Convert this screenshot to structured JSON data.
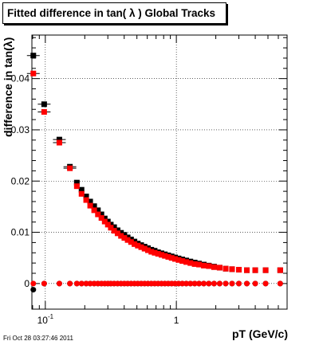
{
  "chart_data": {
    "type": "scatter",
    "title": "Fitted difference in tan( λ )  Global Tracks",
    "xlabel": "pT (GeV/c)",
    "ylabel": "difference in tan(λ)",
    "x_scale": "log",
    "xlim": [
      0.079,
      7.0
    ],
    "ylim": [
      -0.005,
      0.0485
    ],
    "grid": true,
    "x_tick_labels": [
      {
        "value": 0.1,
        "base": "10",
        "exp": "-1"
      },
      {
        "value": 1.0,
        "base": "1",
        "exp": ""
      }
    ],
    "y_ticks": [
      {
        "value": 0,
        "label": "0"
      },
      {
        "value": 0.01,
        "label": "0.01"
      },
      {
        "value": 0.02,
        "label": "0.02"
      },
      {
        "value": 0.03,
        "label": "0.03"
      },
      {
        "value": 0.04,
        "label": "0.04"
      }
    ],
    "series": [
      {
        "color": "#000000",
        "marker": "square",
        "x": [
          0.081,
          0.098,
          0.128,
          0.154,
          0.174,
          0.189,
          0.205,
          0.22,
          0.236,
          0.252,
          0.268,
          0.284,
          0.3,
          0.316,
          0.335,
          0.356,
          0.378,
          0.401,
          0.425,
          0.451,
          0.479,
          0.508,
          0.539,
          0.572,
          0.607,
          0.644,
          0.683,
          0.725,
          0.77,
          0.817,
          0.867,
          0.92,
          0.977,
          1.04,
          1.11,
          1.19,
          1.28,
          1.38,
          1.49,
          1.62,
          1.77,
          1.94,
          2.14,
          2.38,
          2.66,
          3.0,
          3.45,
          4.0,
          4.8,
          6.2
        ],
        "y": [
          0.0445,
          0.035,
          0.0281,
          0.0228,
          0.0197,
          0.0183,
          0.017,
          0.016,
          0.0151,
          0.0143,
          0.0135,
          0.0127,
          0.0121,
          0.0115,
          0.011,
          0.0104,
          0.0099,
          0.0095,
          0.009,
          0.0086,
          0.0082,
          0.0078,
          0.0075,
          0.0072,
          0.0069,
          0.0066,
          0.0064,
          0.0061,
          0.0059,
          0.0057,
          0.0055,
          0.0053,
          0.0051,
          0.0049,
          0.0047,
          0.0045,
          0.0043,
          0.0041,
          0.0039,
          0.0037,
          0.0035,
          0.0033,
          0.0031,
          0.0029,
          0.0028,
          0.0027,
          0.0026,
          0.0026,
          0.0026,
          0.0026
        ]
      },
      {
        "color": "#ff0000",
        "marker": "square",
        "x": [
          0.081,
          0.098,
          0.128,
          0.154,
          0.174,
          0.189,
          0.205,
          0.22,
          0.236,
          0.252,
          0.268,
          0.284,
          0.3,
          0.316,
          0.335,
          0.356,
          0.378,
          0.401,
          0.425,
          0.451,
          0.479,
          0.508,
          0.539,
          0.572,
          0.607,
          0.644,
          0.683,
          0.725,
          0.77,
          0.817,
          0.867,
          0.92,
          0.977,
          1.04,
          1.11,
          1.19,
          1.28,
          1.38,
          1.49,
          1.62,
          1.77,
          1.94,
          2.14,
          2.38,
          2.66,
          3.0,
          3.45,
          4.0,
          4.8,
          6.2
        ],
        "y": [
          0.041,
          0.0335,
          0.0275,
          0.0225,
          0.019,
          0.0175,
          0.0163,
          0.0152,
          0.0143,
          0.0135,
          0.0128,
          0.0121,
          0.0115,
          0.0109,
          0.0103,
          0.0098,
          0.0093,
          0.0089,
          0.0085,
          0.0081,
          0.0077,
          0.0074,
          0.0071,
          0.0068,
          0.0065,
          0.0062,
          0.006,
          0.0058,
          0.0056,
          0.0054,
          0.0052,
          0.005,
          0.0048,
          0.0046,
          0.0044,
          0.0042,
          0.004,
          0.0038,
          0.0037,
          0.0035,
          0.0034,
          0.0032,
          0.0031,
          0.0029,
          0.0028,
          0.0027,
          0.0026,
          0.0026,
          0.0026,
          0.0026
        ]
      },
      {
        "color": "#000000",
        "marker": "circle",
        "x": [
          0.081,
          0.098,
          0.128,
          0.154,
          0.174,
          0.189,
          0.205,
          0.22,
          0.236,
          0.252,
          0.268,
          0.284,
          0.3,
          0.316,
          0.335,
          0.356,
          0.378,
          0.401,
          0.425,
          0.451,
          0.479,
          0.508,
          0.539,
          0.572,
          0.607,
          0.644,
          0.683,
          0.725,
          0.77,
          0.817,
          0.867,
          0.92,
          0.977,
          1.04,
          1.11,
          1.19,
          1.28,
          1.38,
          1.49,
          1.62,
          1.77,
          1.94,
          2.14,
          2.38,
          2.66,
          3.0,
          3.45,
          4.0,
          4.8,
          6.2
        ],
        "y": [
          -0.0012,
          0.0,
          0.0,
          0.0,
          0.0,
          0.0,
          0.0,
          0.0,
          0.0,
          0.0,
          0.0,
          0.0,
          0.0,
          0.0,
          0.0,
          0.0,
          0.0,
          0.0,
          0.0,
          0.0,
          0.0,
          0.0,
          0.0,
          0.0,
          0.0,
          0.0,
          0.0,
          0.0,
          0.0,
          0.0,
          0.0,
          0.0,
          0.0,
          0.0,
          0.0,
          0.0,
          0.0,
          0.0,
          0.0,
          0.0,
          0.0,
          0.0,
          0.0,
          0.0,
          0.0,
          0.0,
          0.0,
          0.0,
          0.0,
          0.0
        ]
      },
      {
        "color": "#ff0000",
        "marker": "circle",
        "x": [
          0.081,
          0.098,
          0.128,
          0.154,
          0.174,
          0.189,
          0.205,
          0.22,
          0.236,
          0.252,
          0.268,
          0.284,
          0.3,
          0.316,
          0.335,
          0.356,
          0.378,
          0.401,
          0.425,
          0.451,
          0.479,
          0.508,
          0.539,
          0.572,
          0.607,
          0.644,
          0.683,
          0.725,
          0.77,
          0.817,
          0.867,
          0.92,
          0.977,
          1.04,
          1.11,
          1.19,
          1.28,
          1.38,
          1.49,
          1.62,
          1.77,
          1.94,
          2.14,
          2.38,
          2.66,
          3.0,
          3.45,
          4.0,
          4.8,
          6.2
        ],
        "y": [
          0.0,
          0.0,
          0.0,
          0.0,
          0.0,
          0.0,
          0.0,
          0.0,
          0.0,
          0.0,
          0.0,
          0.0,
          0.0,
          0.0,
          0.0,
          0.0,
          0.0,
          0.0,
          0.0,
          0.0,
          0.0,
          0.0,
          0.0,
          0.0,
          0.0,
          0.0,
          0.0,
          0.0,
          0.0,
          0.0,
          0.0,
          0.0,
          0.0,
          0.0,
          0.0,
          0.0,
          0.0,
          0.0,
          0.0,
          0.0,
          0.0,
          0.0,
          0.0,
          0.0,
          0.0,
          0.0,
          0.0,
          0.0,
          0.0,
          0.0
        ]
      }
    ],
    "timestamp": "Fri Oct 28 03:27:46 2011"
  }
}
